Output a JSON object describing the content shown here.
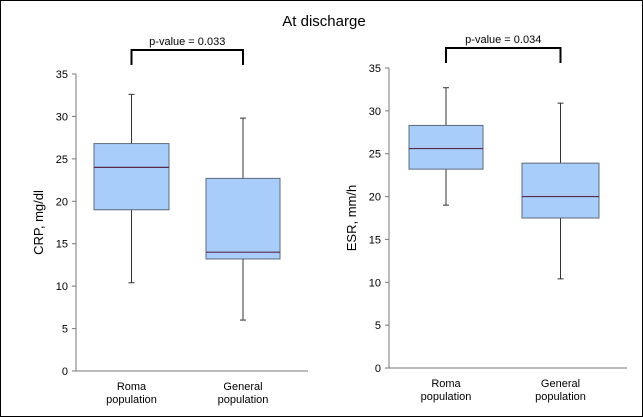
{
  "figure": {
    "title": "At discharge",
    "colors": {
      "box_fill": "#a8cdfa",
      "box_stroke": "#5b6a7a",
      "median": "#5a2a4a",
      "axis": "#777777",
      "whisker": "#333333",
      "bracket": "#000000"
    }
  },
  "chart_data": [
    {
      "type": "box",
      "ylabel": "CRP, mg/dl",
      "xlabel": "",
      "ylim": [
        0,
        35
      ],
      "yticks": [
        0,
        5,
        10,
        15,
        20,
        25,
        30,
        35
      ],
      "grid": false,
      "categories": [
        [
          "Roma",
          "population"
        ],
        [
          "General",
          "population"
        ]
      ],
      "series": [
        {
          "min": 10.4,
          "q1": 19.0,
          "median": 24.0,
          "q3": 26.8,
          "max": 32.6
        },
        {
          "min": 6.0,
          "q1": 13.2,
          "median": 14.0,
          "q3": 22.7,
          "max": 29.8
        }
      ],
      "annotation": "p-value = 0.033"
    },
    {
      "type": "box",
      "ylabel": "ESR, mm/h",
      "xlabel": "",
      "ylim": [
        0,
        35
      ],
      "yticks": [
        0,
        5,
        10,
        15,
        20,
        25,
        30,
        35
      ],
      "grid": false,
      "categories": [
        [
          "Roma",
          "population"
        ],
        [
          "General",
          "population"
        ]
      ],
      "series": [
        {
          "min": 19.0,
          "q1": 23.2,
          "median": 25.6,
          "q3": 28.3,
          "max": 32.7
        },
        {
          "min": 10.4,
          "q1": 17.5,
          "median": 20.0,
          "q3": 23.9,
          "max": 30.9
        }
      ],
      "annotation": "p-value = 0.034"
    }
  ]
}
